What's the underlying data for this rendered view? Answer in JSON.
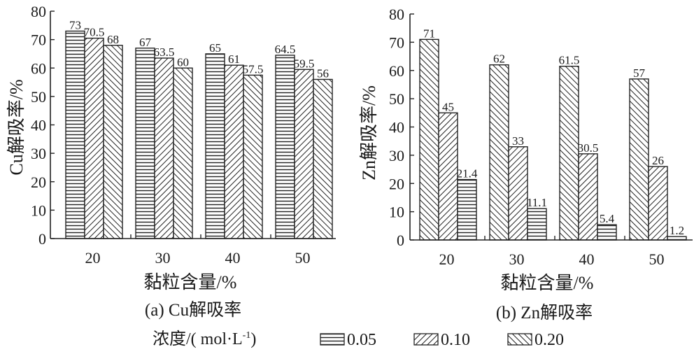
{
  "chart_data": [
    {
      "type": "bar",
      "caption": "(a) Cu解吸率",
      "xlabel": "黏粒含量/%",
      "ylabel": "Cu解吸率/%",
      "categories": [
        "20",
        "30",
        "40",
        "50"
      ],
      "yticks": [
        "0",
        "10",
        "20",
        "30",
        "40",
        "50",
        "60",
        "70",
        "80"
      ],
      "ylim": [
        0,
        80
      ],
      "series": [
        {
          "name": "0.05",
          "values": [
            73,
            67,
            65,
            64.5
          ],
          "labels": [
            "73",
            "67",
            "65",
            "64.5"
          ]
        },
        {
          "name": "0.10",
          "values": [
            70.5,
            63.5,
            61,
            59.5
          ],
          "labels": [
            "70.5",
            "63.5",
            "61",
            "59.5"
          ]
        },
        {
          "name": "0.20",
          "values": [
            68,
            60,
            57.5,
            56
          ],
          "labels": [
            "68",
            "60",
            "57.5",
            "56"
          ]
        }
      ]
    },
    {
      "type": "bar",
      "caption": "(b) Zn解吸率",
      "xlabel": "黏粒含量/%",
      "ylabel": "Zn解吸率/%",
      "categories": [
        "20",
        "30",
        "40",
        "50"
      ],
      "yticks": [
        "0",
        "10",
        "20",
        "30",
        "40",
        "50",
        "60",
        "70",
        "80"
      ],
      "ylim": [
        0,
        80
      ],
      "series": [
        {
          "name": "0.20",
          "values": [
            71,
            62,
            61.5,
            57
          ],
          "labels": [
            "71",
            "62",
            "61.5",
            "57"
          ]
        },
        {
          "name": "0.10",
          "values": [
            45,
            33,
            30.5,
            26
          ],
          "labels": [
            "45",
            "33",
            "30.5",
            "26"
          ]
        },
        {
          "name": "0.05",
          "values": [
            21.4,
            11.1,
            5.4,
            1.2
          ],
          "labels": [
            "21.4",
            "11.1",
            "5.4",
            "1.2"
          ]
        }
      ]
    }
  ],
  "legend": {
    "title": "浓度/( mol·L",
    "title_sup": "-1",
    "title_close": ")",
    "items": [
      {
        "label": "0.05",
        "pattern": "horizontal"
      },
      {
        "label": "0.10",
        "pattern": "back-diagonal"
      },
      {
        "label": "0.20",
        "pattern": "forward-diagonal"
      }
    ]
  }
}
